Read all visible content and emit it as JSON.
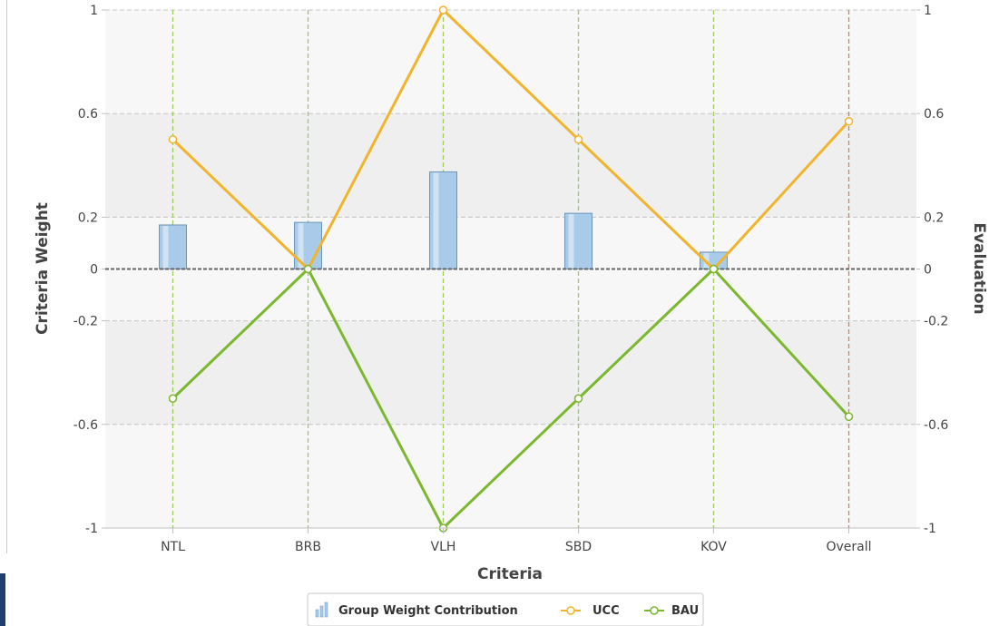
{
  "chart_data": {
    "type": "bar",
    "categories": [
      "NTL",
      "BRB",
      "VLH",
      "SBD",
      "KOV",
      "Overall"
    ],
    "xlabel": "Criteria",
    "ylabel_left": "Criteria Weight",
    "ylabel_right": "Evaluation",
    "ylim": [
      -1,
      1
    ],
    "left_ticks": [
      {
        "value": -1,
        "label": "-1"
      },
      {
        "value": -0.6,
        "label": "-0.6"
      },
      {
        "value": -0.2,
        "label": "-0.2"
      },
      {
        "value": 0,
        "label": "0"
      },
      {
        "value": 0.2,
        "label": "0.2"
      },
      {
        "value": 0.6,
        "label": "0.6"
      },
      {
        "value": 1,
        "label": "1"
      }
    ],
    "right_ticks": [
      {
        "value": -1,
        "label": "-1"
      },
      {
        "value": -0.6,
        "label": "-0.6"
      },
      {
        "value": -0.2,
        "label": "-0.2"
      },
      {
        "value": 0,
        "label": "0"
      },
      {
        "value": 0.2,
        "label": "0.2"
      },
      {
        "value": 0.6,
        "label": "0.6"
      },
      {
        "value": 1,
        "label": "1"
      }
    ],
    "grid": true,
    "legend_position": "bottom",
    "series": [
      {
        "name": "Group Weight Contribution",
        "type": "bar",
        "color": "#a9cbea",
        "values": [
          0.17,
          0.18,
          0.375,
          0.215,
          0.065,
          null
        ]
      },
      {
        "name": "UCC",
        "type": "line",
        "color": "#f0b42d",
        "values": [
          0.5,
          0,
          1,
          0.5,
          0,
          0.57
        ]
      },
      {
        "name": "BAU",
        "type": "line",
        "color": "#7cb82f",
        "values": [
          -0.5,
          0,
          -1,
          -0.5,
          0,
          -0.57
        ]
      }
    ],
    "colors": {
      "plot_background": "#f7f7f7",
      "plot_band": "#efefef",
      "category_gridline": "#9ccc5b",
      "overall_gridline": "#e07a66",
      "horizontal_gridline": "#c4c4c4",
      "zero_line": "#666666"
    }
  }
}
